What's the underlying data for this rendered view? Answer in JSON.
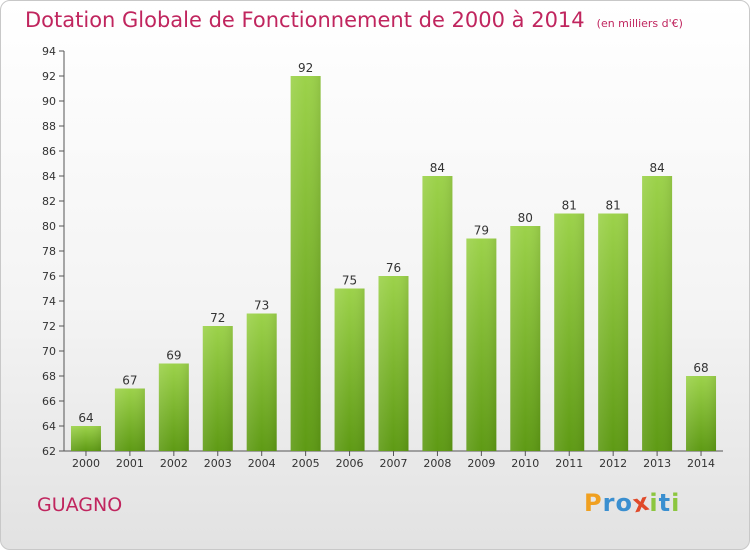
{
  "chart_data": {
    "type": "bar",
    "title": "Dotation Globale de Fonctionnement de 2000 à 2014",
    "subtitle": "(en milliers d'€)",
    "categories": [
      "2000",
      "2001",
      "2002",
      "2003",
      "2004",
      "2005",
      "2006",
      "2007",
      "2008",
      "2009",
      "2010",
      "2011",
      "2012",
      "2013",
      "2014"
    ],
    "values": [
      64,
      67,
      69,
      72,
      73,
      92,
      75,
      76,
      84,
      79,
      80,
      81,
      81,
      84,
      68
    ],
    "ylim": [
      62,
      94
    ],
    "yticks": [
      62,
      64,
      66,
      68,
      70,
      72,
      74,
      76,
      78,
      80,
      82,
      84,
      86,
      88,
      90,
      92,
      94
    ],
    "grid": false,
    "bar_color": "#82bf2a"
  },
  "commune": "GUAGNO",
  "brand": {
    "letters": [
      "P",
      "r",
      "o",
      "x",
      "i",
      "t",
      "i"
    ],
    "colors": [
      "#f0a020",
      "#3a8fd0",
      "#3a8fd0",
      "#e04a2a",
      "#8cc63f",
      "#3a8fd0",
      "#8cc63f"
    ]
  },
  "colors": {
    "accent": "#c0255e"
  }
}
